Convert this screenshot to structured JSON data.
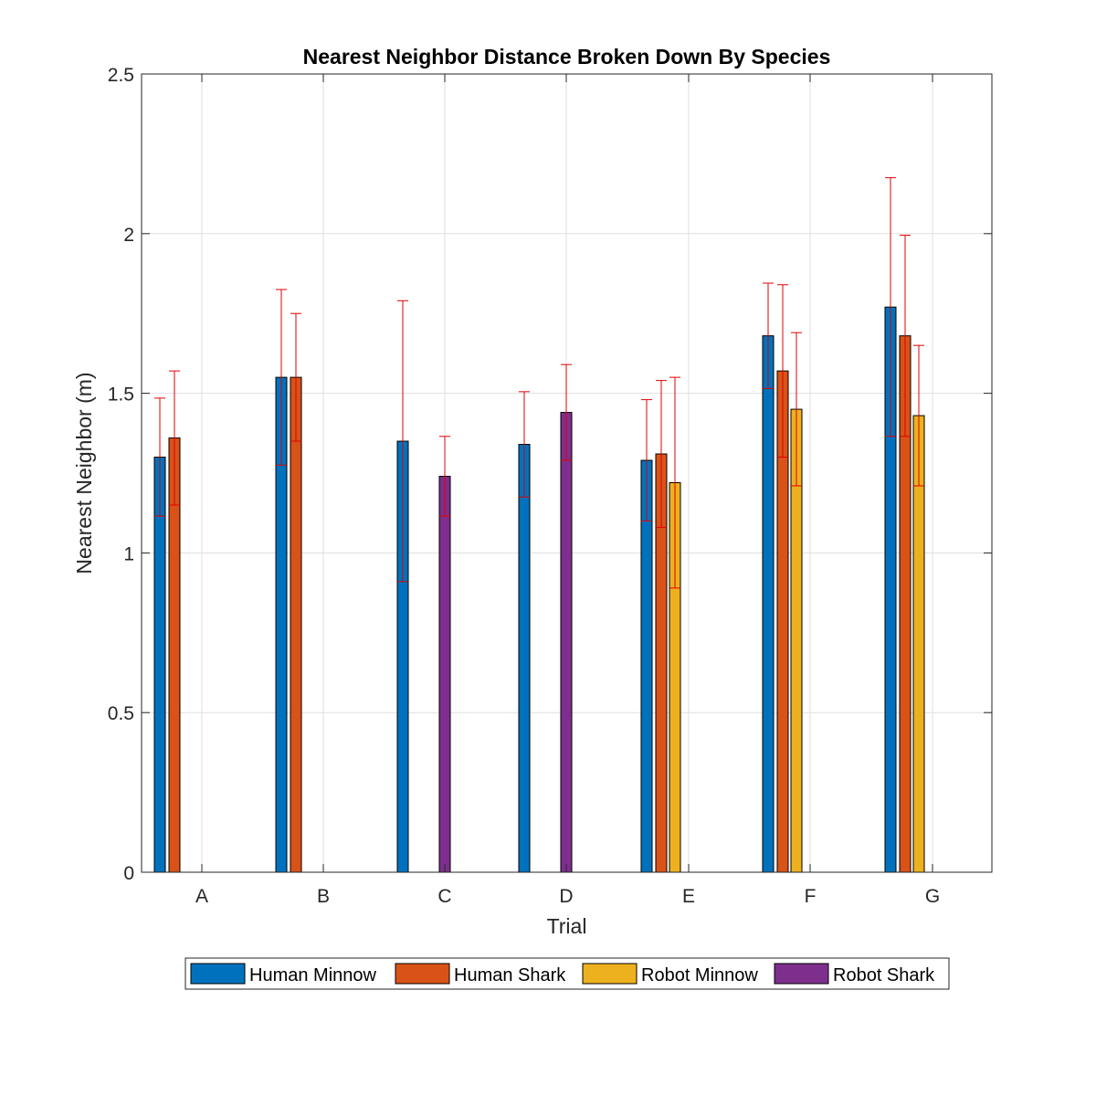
{
  "chart_data": {
    "type": "bar",
    "title": "Nearest Neighbor Distance Broken Down By Species",
    "xlabel": "Trial",
    "ylabel": "Nearest Neighbor (m)",
    "categories": [
      "A",
      "B",
      "C",
      "D",
      "E",
      "F",
      "G"
    ],
    "ylim": [
      0,
      2.5
    ],
    "yticks": [
      0,
      0.5,
      1,
      1.5,
      2,
      2.5
    ],
    "ytick_labels": [
      "0",
      "0.5",
      "1",
      "1.5",
      "2",
      "2.5"
    ],
    "grid": true,
    "legend_position": "bottom-outside",
    "error_bar_color": "#e00000",
    "series": [
      {
        "name": "Human Minnow",
        "color": "#0072BD",
        "values": [
          1.3,
          1.55,
          1.35,
          1.34,
          1.29,
          1.68,
          1.77
        ],
        "errors": [
          0.185,
          0.275,
          0.44,
          0.165,
          0.19,
          0.165,
          0.405
        ]
      },
      {
        "name": "Human Shark",
        "color": "#D95319",
        "values": [
          1.36,
          1.55,
          null,
          null,
          1.31,
          1.57,
          1.68
        ],
        "errors": [
          0.21,
          0.2,
          null,
          null,
          0.23,
          0.27,
          0.315
        ]
      },
      {
        "name": "Robot Minnow",
        "color": "#EDB120",
        "values": [
          null,
          null,
          null,
          null,
          1.22,
          1.45,
          1.43
        ],
        "errors": [
          null,
          null,
          null,
          null,
          0.33,
          0.24,
          0.22
        ]
      },
      {
        "name": "Robot Shark",
        "color": "#7E2F8E",
        "values": [
          null,
          null,
          1.24,
          1.44,
          null,
          null,
          null
        ],
        "errors": [
          null,
          null,
          0.125,
          0.15,
          null,
          null,
          null
        ]
      }
    ]
  }
}
